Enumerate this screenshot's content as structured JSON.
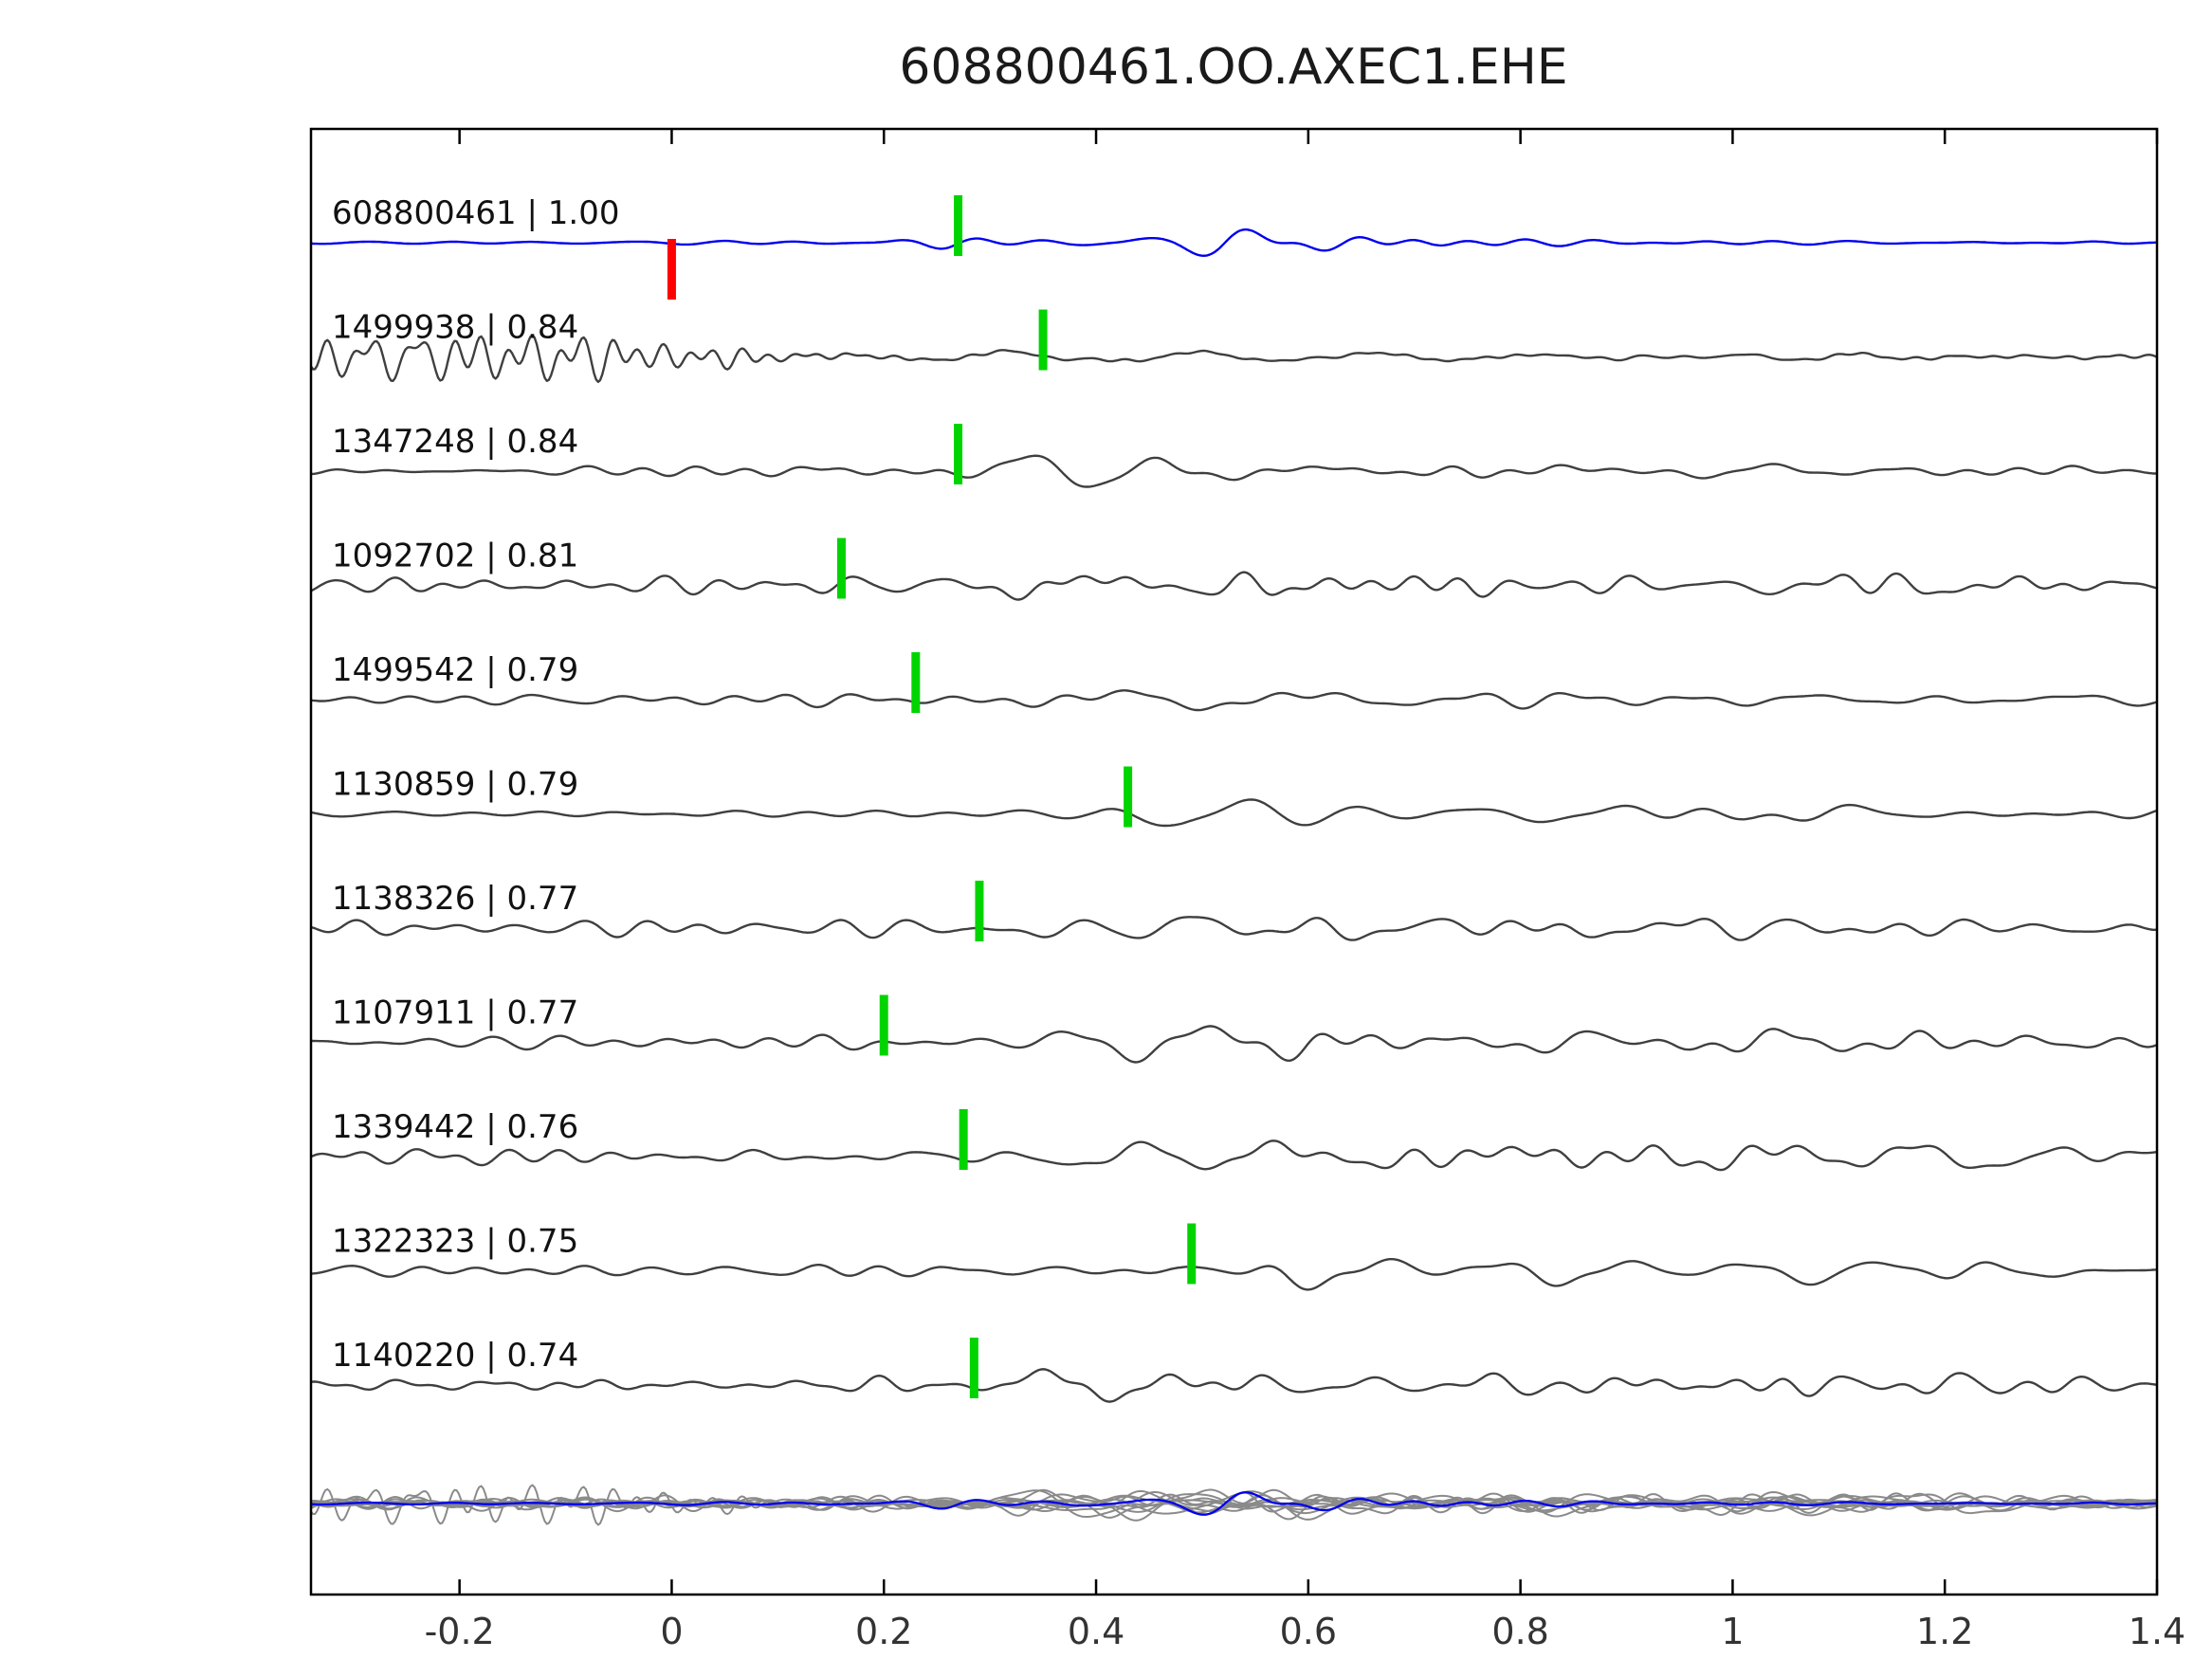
{
  "title": "608800461.OO.AXEC1.EHE",
  "chart_data": {
    "type": "line",
    "title": "608800461.OO.AXEC1.EHE",
    "xlabel": "",
    "ylabel": "",
    "xlim": [
      -0.34,
      1.4
    ],
    "x_ticks": [
      -0.2,
      0,
      0.2,
      0.4,
      0.6,
      0.8,
      1,
      1.2,
      1.4
    ],
    "x_tick_labels": [
      "-0.2",
      "0",
      "0.2",
      "0.4",
      "0.6",
      "0.8",
      "1",
      "1.2",
      "1.4"
    ],
    "grid": false,
    "legend": "none",
    "colors": {
      "template_trace": "#0000ee",
      "detection_trace": "#3f3f3f",
      "overlay_trace": "#8a8a8a",
      "pick_marker": "#00d400",
      "template_pick_marker": "#ff0000",
      "axis": "#000000"
    },
    "description": "Template waveform (blue, top) and 10 matched detections (gray) with cross-correlation values; green ticks are picks, red tick is template origin; bottom row overlays all traces.",
    "traces": [
      {
        "id": "608800461",
        "correlation": "1.00",
        "label": "608800461 | 1.00",
        "pick": 0.27,
        "template_pick": 0.0,
        "is_template": true,
        "synth": {
          "components": [
            {
              "freq": 13,
              "seed": 11,
              "env": [
                [
                  -0.34,
                  2
                ],
                [
                  0.2,
                  2
                ],
                [
                  0.26,
                  6
                ],
                [
                  0.36,
                  6
                ],
                [
                  0.42,
                  4
                ],
                [
                  0.47,
                  14
                ],
                [
                  0.52,
                  30
                ],
                [
                  0.57,
                  38
                ],
                [
                  0.63,
                  34
                ],
                [
                  0.7,
                  30
                ],
                [
                  0.76,
                  16
                ],
                [
                  0.82,
                  8
                ],
                [
                  0.9,
                  4
                ],
                [
                  1.4,
                  3
                ]
              ]
            }
          ]
        }
      },
      {
        "id": "1499938",
        "correlation": "0.84",
        "label": "1499938 | 0.84",
        "pick": 0.35,
        "is_template": false,
        "synth": {
          "components": [
            {
              "freq": 30,
              "seed": 21,
              "env": [
                [
                  -0.34,
                  30
                ],
                [
                  -0.1,
                  26
                ],
                [
                  0.0,
                  18
                ],
                [
                  0.1,
                  9
                ],
                [
                  0.2,
                  4
                ],
                [
                  0.3,
                  2
                ],
                [
                  1.4,
                  2
                ]
              ]
            },
            {
              "freq": 9,
              "seed": 22,
              "env": [
                [
                  -0.34,
                  1
                ],
                [
                  0.25,
                  3
                ],
                [
                  0.35,
                  8
                ],
                [
                  0.5,
                  5
                ],
                [
                  0.7,
                  6
                ],
                [
                  1.4,
                  4
                ]
              ]
            }
          ]
        }
      },
      {
        "id": "1347248",
        "correlation": "0.84",
        "label": "1347248 | 0.84",
        "pick": 0.27,
        "is_template": false,
        "synth": {
          "components": [
            {
              "freq": 16,
              "seed": 31,
              "env": [
                [
                  -0.34,
                  4
                ],
                [
                  0.0,
                  6
                ],
                [
                  0.2,
                  5
                ],
                [
                  1.4,
                  5
                ]
              ]
            },
            {
              "freq": 7.5,
              "seed": 32,
              "env": [
                [
                  -0.34,
                  1
                ],
                [
                  0.25,
                  4
                ],
                [
                  0.3,
                  20
                ],
                [
                  0.38,
                  26
                ],
                [
                  0.5,
                  16
                ],
                [
                  0.65,
                  10
                ],
                [
                  0.8,
                  10
                ],
                [
                  1.0,
                  8
                ],
                [
                  1.4,
                  6
                ]
              ]
            }
          ]
        }
      },
      {
        "id": "1092702",
        "correlation": "0.81",
        "label": "1092702 | 0.81",
        "pick": 0.16,
        "is_template": false,
        "synth": {
          "components": [
            {
              "freq": 19,
              "seed": 41,
              "env": [
                [
                  -0.34,
                  10
                ],
                [
                  -0.1,
                  12
                ],
                [
                  0.1,
                  14
                ],
                [
                  0.18,
                  20
                ],
                [
                  0.3,
                  16
                ],
                [
                  0.5,
                  14
                ],
                [
                  0.7,
                  14
                ],
                [
                  1.0,
                  12
                ],
                [
                  1.4,
                  12
                ]
              ]
            },
            {
              "freq": 6,
              "seed": 42,
              "env": [
                [
                  0.2,
                  0
                ],
                [
                  0.3,
                  14
                ],
                [
                  0.45,
                  12
                ],
                [
                  0.6,
                  8
                ],
                [
                  1.4,
                  6
                ]
              ]
            }
          ]
        }
      },
      {
        "id": "1499542",
        "correlation": "0.79",
        "label": "1499542 | 0.79",
        "pick": 0.23,
        "is_template": false,
        "synth": {
          "components": [
            {
              "freq": 14,
              "seed": 51,
              "env": [
                [
                  -0.34,
                  6
                ],
                [
                  0.1,
                  7
                ],
                [
                  0.3,
                  6
                ],
                [
                  1.4,
                  6
                ]
              ]
            },
            {
              "freq": 7,
              "seed": 52,
              "env": [
                [
                  0.2,
                  0
                ],
                [
                  0.28,
                  18
                ],
                [
                  0.35,
                  28
                ],
                [
                  0.45,
                  18
                ],
                [
                  0.6,
                  12
                ],
                [
                  0.8,
                  8
                ],
                [
                  1.4,
                  5
                ]
              ]
            }
          ]
        }
      },
      {
        "id": "1130859",
        "correlation": "0.79",
        "label": "1130859 | 0.79",
        "pick": 0.43,
        "is_template": false,
        "synth": {
          "components": [
            {
              "freq": 13,
              "seed": 61,
              "env": [
                [
                  -0.34,
                  5
                ],
                [
                  0.2,
                  6
                ],
                [
                  0.35,
                  6
                ],
                [
                  1.4,
                  7
                ]
              ]
            },
            {
              "freq": 6.5,
              "seed": 62,
              "env": [
                [
                  0.4,
                  0
                ],
                [
                  0.48,
                  22
                ],
                [
                  0.55,
                  26
                ],
                [
                  0.68,
                  14
                ],
                [
                  0.85,
                  8
                ],
                [
                  1.4,
                  6
                ]
              ]
            }
          ]
        }
      },
      {
        "id": "1138326",
        "correlation": "0.77",
        "label": "1138326 | 0.77",
        "pick": 0.29,
        "is_template": false,
        "synth": {
          "components": [
            {
              "freq": 17,
              "seed": 71,
              "env": [
                [
                  -0.34,
                  13
                ],
                [
                  0.0,
                  12
                ],
                [
                  0.2,
                  13
                ],
                [
                  0.6,
                  13
                ],
                [
                  1.4,
                  12
                ]
              ]
            },
            {
              "freq": 7,
              "seed": 72,
              "env": [
                [
                  0.28,
                  0
                ],
                [
                  0.35,
                  16
                ],
                [
                  0.45,
                  18
                ],
                [
                  0.6,
                  14
                ],
                [
                  0.75,
                  12
                ],
                [
                  1.4,
                  8
                ]
              ]
            }
          ]
        }
      },
      {
        "id": "1107911",
        "correlation": "0.77",
        "label": "1107911 | 0.77",
        "pick": 0.2,
        "is_template": false,
        "synth": {
          "components": [
            {
              "freq": 15,
              "seed": 81,
              "env": [
                [
                  -0.34,
                  9
                ],
                [
                  0.0,
                  11
                ],
                [
                  0.15,
                  12
                ],
                [
                  1.4,
                  9
                ]
              ]
            },
            {
              "freq": 7.5,
              "seed": 82,
              "env": [
                [
                  0.18,
                  0
                ],
                [
                  0.26,
                  20
                ],
                [
                  0.34,
                  24
                ],
                [
                  0.45,
                  20
                ],
                [
                  0.6,
                  14
                ],
                [
                  0.8,
                  10
                ],
                [
                  1.4,
                  7
                ]
              ]
            }
          ]
        }
      },
      {
        "id": "1339442",
        "correlation": "0.76",
        "label": "1339442 | 0.76",
        "pick": 0.275,
        "is_template": false,
        "synth": {
          "components": [
            {
              "freq": 16,
              "seed": 91,
              "env": [
                [
                  -0.34,
                  9
                ],
                [
                  0.1,
                  10
                ],
                [
                  1.4,
                  8
                ]
              ]
            },
            {
              "freq": 6,
              "seed": 92,
              "env": [
                [
                  0.28,
                  2
                ],
                [
                  0.38,
                  18
                ],
                [
                  0.5,
                  20
                ],
                [
                  0.65,
                  14
                ],
                [
                  0.85,
                  12
                ],
                [
                  1.1,
                  12
                ],
                [
                  1.4,
                  8
                ]
              ]
            }
          ]
        }
      },
      {
        "id": "1322323",
        "correlation": "0.75",
        "label": "1322323 | 0.75",
        "pick": 0.49,
        "is_template": false,
        "synth": {
          "components": [
            {
              "freq": 15,
              "seed": 101,
              "env": [
                [
                  -0.34,
                  7
                ],
                [
                  0.2,
                  8
                ],
                [
                  0.4,
                  8
                ],
                [
                  1.4,
                  8
                ]
              ]
            },
            {
              "freq": 6.5,
              "seed": 102,
              "env": [
                [
                  0.48,
                  0
                ],
                [
                  0.55,
                  24
                ],
                [
                  0.62,
                  26
                ],
                [
                  0.75,
                  14
                ],
                [
                  0.95,
                  10
                ],
                [
                  1.4,
                  8
                ]
              ]
            }
          ]
        }
      },
      {
        "id": "1140220",
        "correlation": "0.74",
        "label": "1140220 | 0.74",
        "pick": 0.285,
        "is_template": false,
        "synth": {
          "components": [
            {
              "freq": 18,
              "seed": 111,
              "env": [
                [
                  -0.34,
                  8
                ],
                [
                  0.1,
                  9
                ],
                [
                  1.4,
                  8
                ]
              ]
            },
            {
              "freq": 8,
              "seed": 112,
              "env": [
                [
                  0.26,
                  0
                ],
                [
                  0.33,
                  18
                ],
                [
                  0.42,
                  16
                ],
                [
                  0.6,
                  10
                ],
                [
                  0.8,
                  9
                ],
                [
                  1.4,
                  7
                ]
              ]
            }
          ]
        }
      }
    ],
    "overlay_row": {
      "content": "all traces overlaid",
      "scale": 0.85
    }
  }
}
